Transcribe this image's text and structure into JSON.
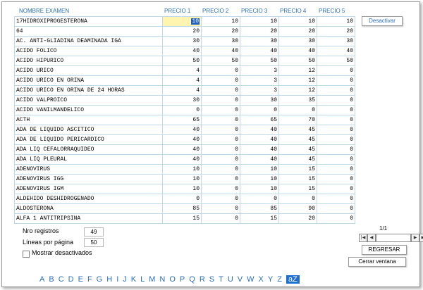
{
  "table": {
    "headers": [
      "NOMBRE EXAMEN",
      "PRECIO 1",
      "PRECIO 2",
      "PRECIO 3",
      "PRECIO 4",
      "PRECIO 5"
    ],
    "rows": [
      [
        "17HIDROXIPROGESTERONA",
        "10",
        "10",
        "10",
        "10",
        "10"
      ],
      [
        "64",
        "20",
        "20",
        "20",
        "20",
        "20"
      ],
      [
        "AC. ANTI-GLIADINA DEAMINADA IGA",
        "30",
        "30",
        "30",
        "30",
        "30"
      ],
      [
        "ACIDO FOLICO",
        "40",
        "40",
        "40",
        "40",
        "40"
      ],
      [
        "ACIDO HIPURICO",
        "50",
        "50",
        "50",
        "50",
        "50"
      ],
      [
        "ACIDO URICO",
        "4",
        "0",
        "3",
        "12",
        "0"
      ],
      [
        "ACIDO URICO EN ORINA",
        "4",
        "0",
        "3",
        "12",
        "0"
      ],
      [
        "ACIDO URICO EN ORINA DE 24 HORAS",
        "4",
        "0",
        "3",
        "12",
        "0"
      ],
      [
        "ACIDO VALPROICO",
        "30",
        "0",
        "30",
        "35",
        "0"
      ],
      [
        "ACIDO VANILMANDELICO",
        "0",
        "0",
        "0",
        "0",
        "0"
      ],
      [
        "ACTH",
        "65",
        "0",
        "65",
        "70",
        "0"
      ],
      [
        "ADA DE LIQUIDO ASCITICO",
        "40",
        "0",
        "40",
        "45",
        "0"
      ],
      [
        "ADA DE LIQUIDO PERICARDICO",
        "40",
        "0",
        "40",
        "45",
        "0"
      ],
      [
        "ADA LIQ CEFALORRAQUIDEO",
        "40",
        "0",
        "40",
        "45",
        "0"
      ],
      [
        "ADA LIQ PLEURAL",
        "40",
        "0",
        "40",
        "45",
        "0"
      ],
      [
        "ADENOVIRUS",
        "10",
        "0",
        "10",
        "15",
        "0"
      ],
      [
        "ADENOVIRUS IGG",
        "10",
        "0",
        "10",
        "15",
        "0"
      ],
      [
        "ADENOVIRUS IGM",
        "10",
        "0",
        "10",
        "15",
        "0"
      ],
      [
        "ALDEHIDO DESHIDROGENADO",
        "0",
        "0",
        "0",
        "0",
        "0"
      ],
      [
        "ALDOSTERONA",
        "85",
        "0",
        "85",
        "90",
        "0"
      ],
      [
        "ALFA 1 ANTITRIPSINA",
        "15",
        "0",
        "15",
        "20",
        "0"
      ]
    ]
  },
  "buttons": {
    "desactivar": "Desactivar",
    "regresar": "REGRESAR",
    "cerrar": "Cerrar ventana"
  },
  "stats": {
    "nro_registros_label": "Nro registros",
    "nro_registros_value": "49",
    "lineas_label": "Líneas por página",
    "lineas_value": "50",
    "mostrar_label": "Mostrar desactivados"
  },
  "pager": {
    "page_text": "1/1",
    "nav_icons": [
      "first-page-icon",
      "prev-page-icon",
      "next-page-icon",
      "last-page-icon"
    ]
  },
  "letters": [
    "A",
    "B",
    "C",
    "D",
    "E",
    "F",
    "G",
    "H",
    "I",
    "J",
    "K",
    "L",
    "M",
    "N",
    "O",
    "P",
    "Q",
    "R",
    "S",
    "T",
    "U",
    "V",
    "W",
    "X",
    "Y",
    "Z",
    "aZ"
  ],
  "colors": {
    "accent": "#2a6fc0",
    "grid_border": "#bfd9ea",
    "selected_cell_bg": "#fff4b0",
    "selection_highlight": "#1f5fbf"
  }
}
